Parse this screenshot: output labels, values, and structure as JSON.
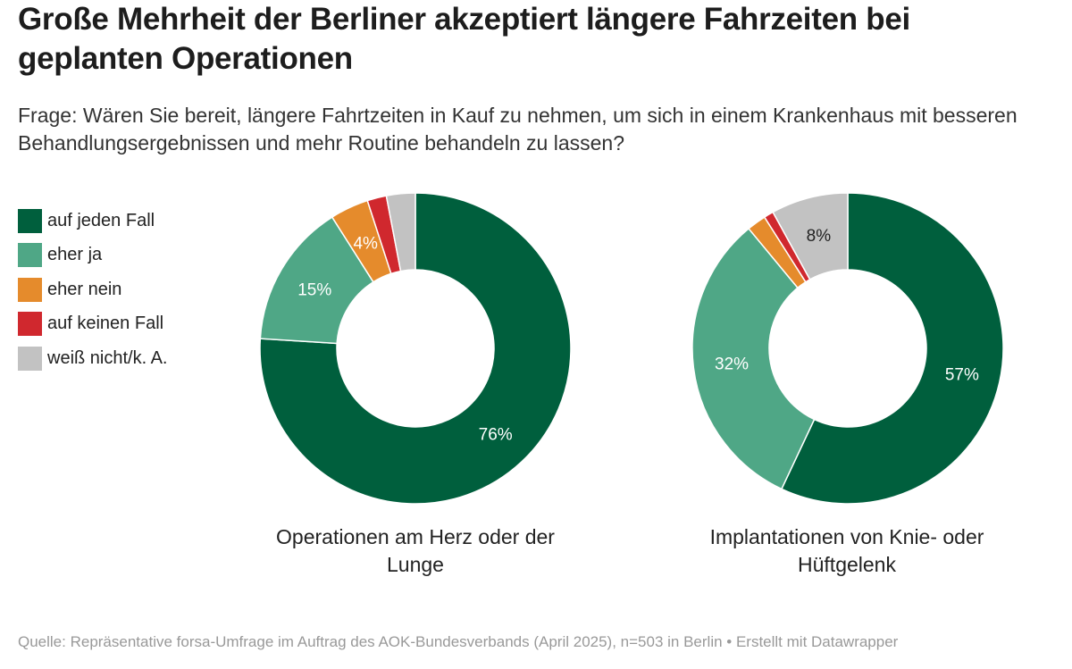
{
  "header": {
    "title": "Große Mehrheit der Berliner akzeptiert längere Fahrzeiten bei geplanten Operationen",
    "subtitle": "Frage: Wären Sie bereit, längere Fahrtzeiten in Kauf zu nehmen, um sich in einem Krankenhaus mit besseren Behandlungsergebnissen und mehr Routine behandeln zu lassen?"
  },
  "legend": [
    {
      "label": "auf jeden Fall",
      "color": "#005f3d"
    },
    {
      "label": "eher ja",
      "color": "#4fa786"
    },
    {
      "label": "eher nein",
      "color": "#e58b2c"
    },
    {
      "label": "auf keinen Fall",
      "color": "#d0282e"
    },
    {
      "label": "weiß nicht/k. A.",
      "color": "#c2c2c2"
    }
  ],
  "chart_data": [
    {
      "type": "pie",
      "variant": "donut",
      "title": "Operationen am Herz oder der Lunge",
      "categories": [
        "auf jeden Fall",
        "eher ja",
        "eher nein",
        "auf keinen Fall",
        "weiß nicht/k. A."
      ],
      "values": [
        76,
        15,
        4,
        2,
        3
      ],
      "labels": [
        "76%",
        "15%",
        "4%",
        "",
        ""
      ],
      "colors": [
        "#005f3d",
        "#4fa786",
        "#e58b2c",
        "#d0282e",
        "#c2c2c2"
      ]
    },
    {
      "type": "pie",
      "variant": "donut",
      "title": "Implantationen von Knie- oder Hüftgelenk",
      "categories": [
        "auf jeden Fall",
        "eher ja",
        "eher nein",
        "auf keinen Fall",
        "weiß nicht/k. A."
      ],
      "values": [
        57,
        32,
        2,
        1,
        8
      ],
      "labels": [
        "57%",
        "32%",
        "",
        "",
        "8%"
      ],
      "colors": [
        "#005f3d",
        "#4fa786",
        "#e58b2c",
        "#d0282e",
        "#c2c2c2"
      ]
    }
  ],
  "footer": {
    "source": "Quelle: Repräsentative forsa-Umfrage im Auftrag des AOK-Bundesverbands (April 2025), n=503 in Berlin • Erstellt mit Datawrapper"
  }
}
